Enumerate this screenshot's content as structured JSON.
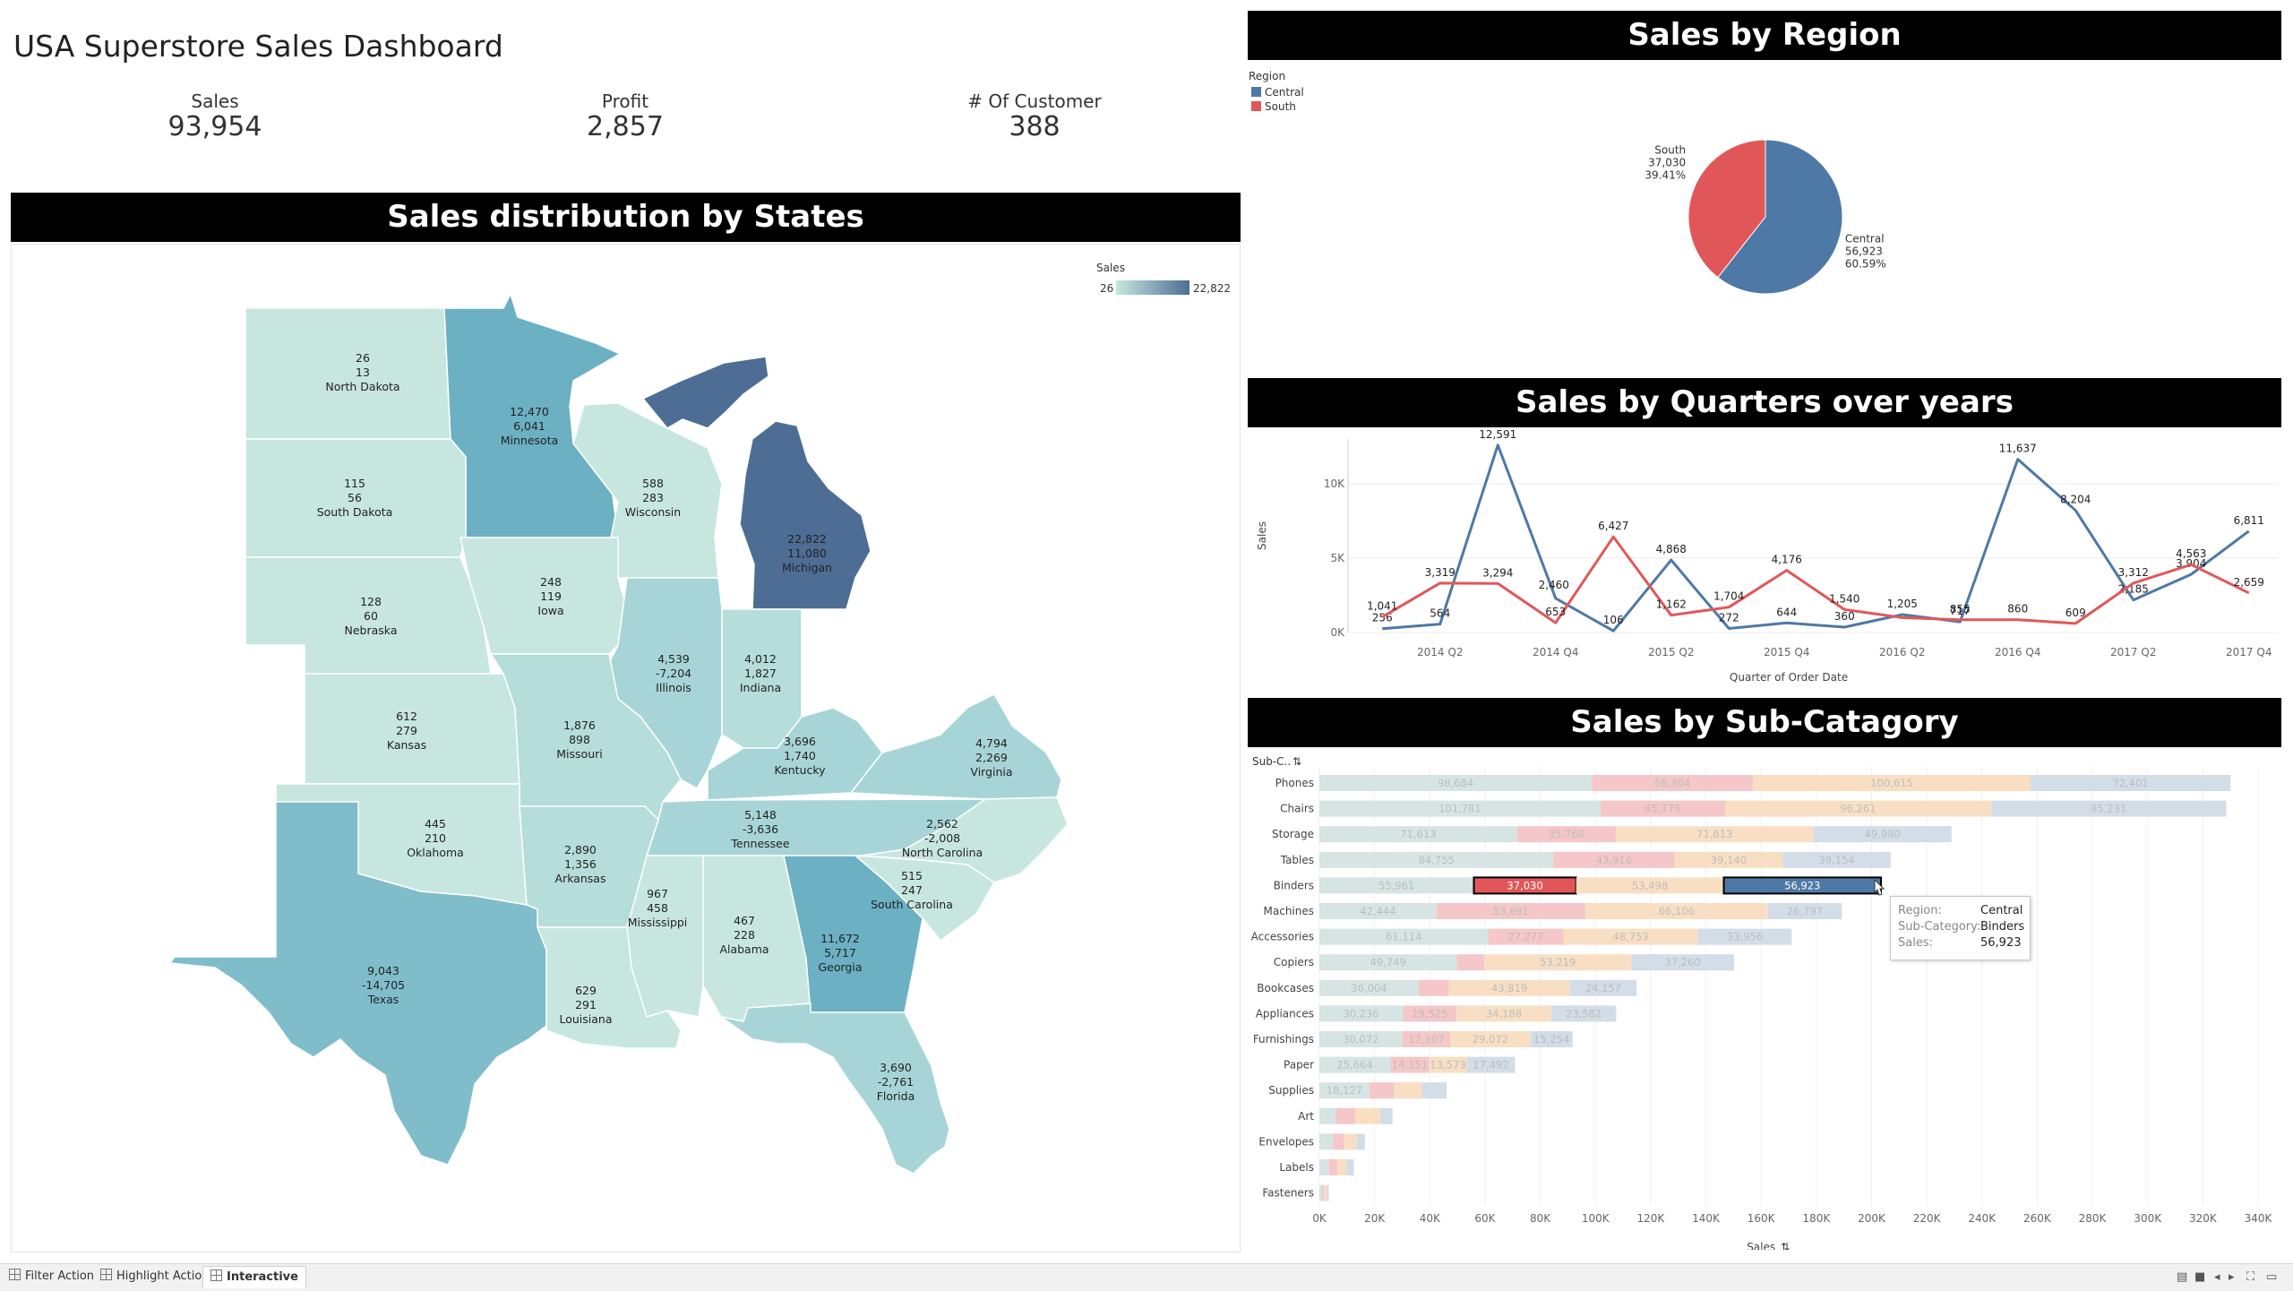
{
  "dashboard": {
    "title": "USA Superstore Sales Dashboard",
    "kpis": [
      {
        "label": "Sales",
        "value": "93,954"
      },
      {
        "label": "Profit",
        "value": "2,857"
      },
      {
        "label": "# Of Customer",
        "value": "388"
      }
    ]
  },
  "map": {
    "banner": "Sales distribution by States",
    "legend_title": "Sales",
    "legend_min": "26",
    "legend_max": "22,822",
    "color_low": "#c7e6df",
    "color_high": "#4e6d94",
    "states": [
      {
        "name": "North Dakota",
        "sales": "26",
        "profit": "13"
      },
      {
        "name": "Minnesota",
        "sales": "12,470",
        "profit": "6,041"
      },
      {
        "name": "South Dakota",
        "sales": "115",
        "profit": "56"
      },
      {
        "name": "Wisconsin",
        "sales": "588",
        "profit": "283"
      },
      {
        "name": "Michigan",
        "sales": "22,822",
        "profit": "11,080"
      },
      {
        "name": "Nebraska",
        "sales": "128",
        "profit": "60"
      },
      {
        "name": "Iowa",
        "sales": "248",
        "profit": "119"
      },
      {
        "name": "Illinois",
        "sales": "4,539",
        "profit": "-7,204"
      },
      {
        "name": "Indiana",
        "sales": "4,012",
        "profit": "1,827"
      },
      {
        "name": "Kansas",
        "sales": "612",
        "profit": "279"
      },
      {
        "name": "Missouri",
        "sales": "1,876",
        "profit": "898"
      },
      {
        "name": "Kentucky",
        "sales": "3,696",
        "profit": "1,740"
      },
      {
        "name": "Virginia",
        "sales": "4,794",
        "profit": "2,269"
      },
      {
        "name": "Oklahoma",
        "sales": "445",
        "profit": "210"
      },
      {
        "name": "Tennessee",
        "sales": "5,148",
        "profit": "-3,636"
      },
      {
        "name": "North Carolina",
        "sales": "2,562",
        "profit": "-2,008"
      },
      {
        "name": "Arkansas",
        "sales": "2,890",
        "profit": "1,356"
      },
      {
        "name": "Mississippi",
        "sales": "967",
        "profit": "458"
      },
      {
        "name": "Alabama",
        "sales": "467",
        "profit": "228"
      },
      {
        "name": "Georgia",
        "sales": "11,672",
        "profit": "5,717"
      },
      {
        "name": "South Carolina",
        "sales": "515",
        "profit": "247"
      },
      {
        "name": "Texas",
        "sales": "9,043",
        "profit": "-14,705"
      },
      {
        "name": "Louisiana",
        "sales": "629",
        "profit": "291"
      },
      {
        "name": "Florida",
        "sales": "3,690",
        "profit": "-2,761"
      }
    ]
  },
  "region": {
    "banner": "Sales by Region",
    "legend_title": "Region",
    "legend": [
      {
        "name": "Central",
        "color": "#4e79a7"
      },
      {
        "name": "South",
        "color": "#e15759"
      }
    ]
  },
  "quarters": {
    "banner": "Sales by Quarters over years",
    "x_title": "Quarter of Order Date",
    "y_title": "Sales"
  },
  "subcategory": {
    "banner": "Sales by Sub-Catagory",
    "header_label": "Sub-C..",
    "x_title": "Sales",
    "tooltip": {
      "rows": [
        {
          "key": "Region:",
          "value": "Central"
        },
        {
          "key": "Sub-Category:",
          "value": "Binders"
        },
        {
          "key": "Sales:",
          "value": "56,923"
        }
      ]
    }
  },
  "tabs": [
    {
      "label": "Filter Action",
      "active": false
    },
    {
      "label": "Highlight Action",
      "active": false
    },
    {
      "label": "Interactive",
      "active": true
    }
  ],
  "chart_data": [
    {
      "type": "pie",
      "title": "Sales by Region",
      "labels": [
        "Central",
        "South"
      ],
      "values": [
        56923,
        37030
      ],
      "value_labels": [
        "56,923",
        "37,030"
      ],
      "percent_labels": [
        "60.59%",
        "39.41%"
      ],
      "colors": [
        "#4e79a7",
        "#e15759"
      ]
    },
    {
      "type": "line",
      "title": "Sales by Quarters over years",
      "xlabel": "Quarter of Order Date",
      "ylabel": "Sales",
      "x": [
        "2014 Q1",
        "2014 Q2",
        "2014 Q3",
        "2014 Q4",
        "2015 Q1",
        "2015 Q2",
        "2015 Q3",
        "2015 Q4",
        "2016 Q1",
        "2016 Q2",
        "2016 Q3",
        "2016 Q4",
        "2017 Q1",
        "2017 Q2",
        "2017 Q3",
        "2017 Q4"
      ],
      "x_tick_labels": [
        "2014 Q2",
        "2014 Q4",
        "2015 Q2",
        "2015 Q4",
        "2016 Q2",
        "2016 Q4",
        "2017 Q2",
        "2017 Q4"
      ],
      "y_ticks": [
        {
          "v": 0,
          "label": "0K"
        },
        {
          "v": 5000,
          "label": "5K"
        },
        {
          "v": 10000,
          "label": "10K"
        }
      ],
      "ylim": [
        0,
        13000
      ],
      "series": [
        {
          "name": "Central",
          "color": "#4e79a7",
          "values": [
            256,
            564,
            12591,
            2300,
            106,
            4868,
            272,
            644,
            360,
            1205,
            717,
            11637,
            8204,
            2185,
            3904,
            6811
          ],
          "labels": [
            "256",
            "564",
            "12,591",
            null,
            "106",
            "4,868",
            "272",
            "644",
            "360",
            "1,205",
            "717",
            "11,637",
            "8,204",
            "2,185",
            "3,904",
            "6,811"
          ]
        },
        {
          "name": "South",
          "color": "#e15759",
          "values": [
            1041,
            3319,
            3294,
            653,
            6427,
            1162,
            1704,
            4176,
            1540,
            1000,
            855,
            860,
            609,
            3312,
            4563,
            2659
          ],
          "labels": [
            "1,041",
            "3,319",
            "3,294",
            "653",
            "6,427",
            "1,162",
            "1,704",
            "4,176",
            "1,540",
            null,
            "855",
            "860",
            "609",
            "3,312",
            "4,563",
            "2,659"
          ]
        }
      ],
      "extra_labels": [
        "2,460"
      ]
    },
    {
      "type": "bar",
      "title": "Sales by Sub-Catagory",
      "orientation": "horizontal-stacked",
      "xlabel": "Sales",
      "xlim": [
        0,
        340000
      ],
      "x_ticks": [
        {
          "v": 0,
          "label": "0K"
        },
        {
          "v": 20000,
          "label": "20K"
        },
        {
          "v": 40000,
          "label": "40K"
        },
        {
          "v": 60000,
          "label": "60K"
        },
        {
          "v": 80000,
          "label": "80K"
        },
        {
          "v": 100000,
          "label": "100K"
        },
        {
          "v": 120000,
          "label": "120K"
        },
        {
          "v": 140000,
          "label": "140K"
        },
        {
          "v": 160000,
          "label": "160K"
        },
        {
          "v": 180000,
          "label": "180K"
        },
        {
          "v": 200000,
          "label": "200K"
        },
        {
          "v": 220000,
          "label": "220K"
        },
        {
          "v": 240000,
          "label": "240K"
        },
        {
          "v": 260000,
          "label": "260K"
        },
        {
          "v": 280000,
          "label": "280K"
        },
        {
          "v": 300000,
          "label": "300K"
        },
        {
          "v": 320000,
          "label": "320K"
        },
        {
          "v": 340000,
          "label": "340K"
        }
      ],
      "series_colors": [
        "#4e79a7",
        "#e15759",
        "#f28e2b",
        "#4e79a7"
      ],
      "faded_colors": [
        "#d6e4e3",
        "#f5c7c8",
        "#f8dfc3",
        "#d3dde8"
      ],
      "categories": [
        "Phones",
        "Chairs",
        "Storage",
        "Tables",
        "Binders",
        "Machines",
        "Accessories",
        "Copiers",
        "Bookcases",
        "Appliances",
        "Furnishings",
        "Paper",
        "Supplies",
        "Art",
        "Envelopes",
        "Labels",
        "Fasteners"
      ],
      "values": [
        [
          98684,
          58304,
          100615,
          72401
        ],
        [
          101781,
          45176,
          96261,
          85231
        ],
        [
          71613,
          35768,
          71613,
          49980
        ],
        [
          84755,
          43916,
          39140,
          39154
        ],
        [
          55961,
          37030,
          53498,
          56923
        ],
        [
          42444,
          53891,
          66106,
          26797
        ],
        [
          61114,
          27277,
          48753,
          33956
        ],
        [
          49749,
          10000,
          53219,
          37260
        ],
        [
          36004,
          10899,
          43819,
          24157
        ],
        [
          30236,
          19525,
          34188,
          23582
        ],
        [
          30072,
          17307,
          29072,
          15254
        ],
        [
          25664,
          14151,
          13573,
          17492
        ],
        [
          18127,
          9000,
          10000,
          9000
        ],
        [
          6000,
          7000,
          9000,
          4500
        ],
        [
          5000,
          4000,
          4500,
          3000
        ],
        [
          3500,
          3000,
          3500,
          2500
        ],
        [
          1000,
          700,
          1000,
          700
        ]
      ],
      "value_labels": [
        [
          "98,684",
          "58,304",
          "100,615",
          "72,401"
        ],
        [
          "101,781",
          "45,176",
          "96,261",
          "85,231"
        ],
        [
          "71,613",
          "35,768",
          "71,613",
          "49,980"
        ],
        [
          "84,755",
          "43,916",
          "39,140",
          "39,154"
        ],
        [
          "55,961",
          "37,030",
          "53,498",
          "56,923"
        ],
        [
          "42,444",
          "53,891",
          "66,106",
          "26,797"
        ],
        [
          "61,114",
          "27,277",
          "48,753",
          "33,956"
        ],
        [
          "49,749",
          "",
          "53,219",
          "37,260"
        ],
        [
          "36,004",
          "",
          "43,819",
          "24,157"
        ],
        [
          "30,236",
          "19,525",
          "34,188",
          "23,582"
        ],
        [
          "30,072",
          "17,307",
          "29,072",
          "15,254"
        ],
        [
          "25,664",
          "14,151",
          "13,573",
          "17,492"
        ],
        [
          "18,127",
          "",
          "",
          ""
        ],
        [
          "",
          "",
          "",
          ""
        ],
        [
          "",
          "",
          "",
          ""
        ],
        [
          "",
          "",
          "",
          ""
        ],
        [
          "",
          "",
          "",
          ""
        ]
      ],
      "highlight": {
        "category": "Binders",
        "segments": [
          1,
          3
        ]
      }
    }
  ]
}
